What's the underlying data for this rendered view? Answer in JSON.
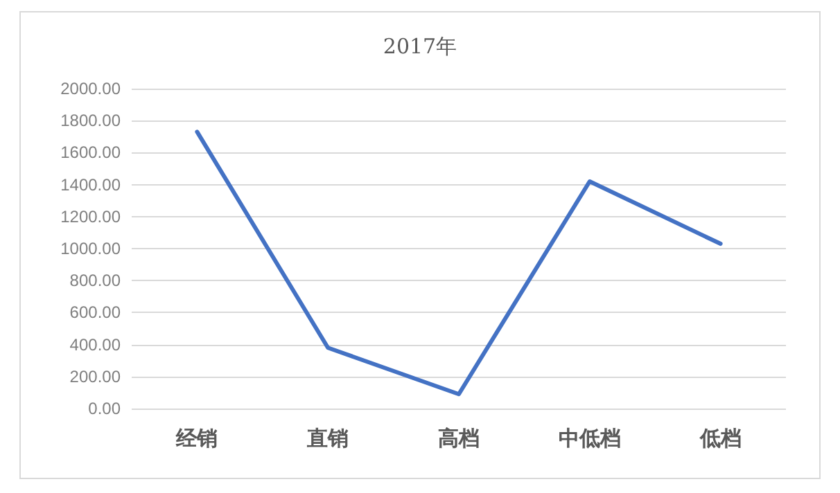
{
  "chart_data": {
    "type": "line",
    "title": "2017年",
    "categories": [
      "经销",
      "直销",
      "高档",
      "中低档",
      "低档"
    ],
    "series": [
      {
        "color": "#4472c4",
        "values": [
          1730,
          380,
          90,
          1420,
          1030
        ]
      }
    ],
    "ylim": [
      0,
      2000
    ],
    "yticks": [
      {
        "value": 0,
        "label": "0.00"
      },
      {
        "value": 200,
        "label": "200.00"
      },
      {
        "value": 400,
        "label": "400.00"
      },
      {
        "value": 600,
        "label": "600.00"
      },
      {
        "value": 800,
        "label": "800.00"
      },
      {
        "value": 1000,
        "label": "1000.00"
      },
      {
        "value": 1200,
        "label": "1200.00"
      },
      {
        "value": 1400,
        "label": "1400.00"
      },
      {
        "value": 1600,
        "label": "1600.00"
      },
      {
        "value": 1800,
        "label": "1800.00"
      },
      {
        "value": 2000,
        "label": "2000.00"
      }
    ],
    "grid": "y",
    "marker": "none",
    "line_style": "solid"
  }
}
